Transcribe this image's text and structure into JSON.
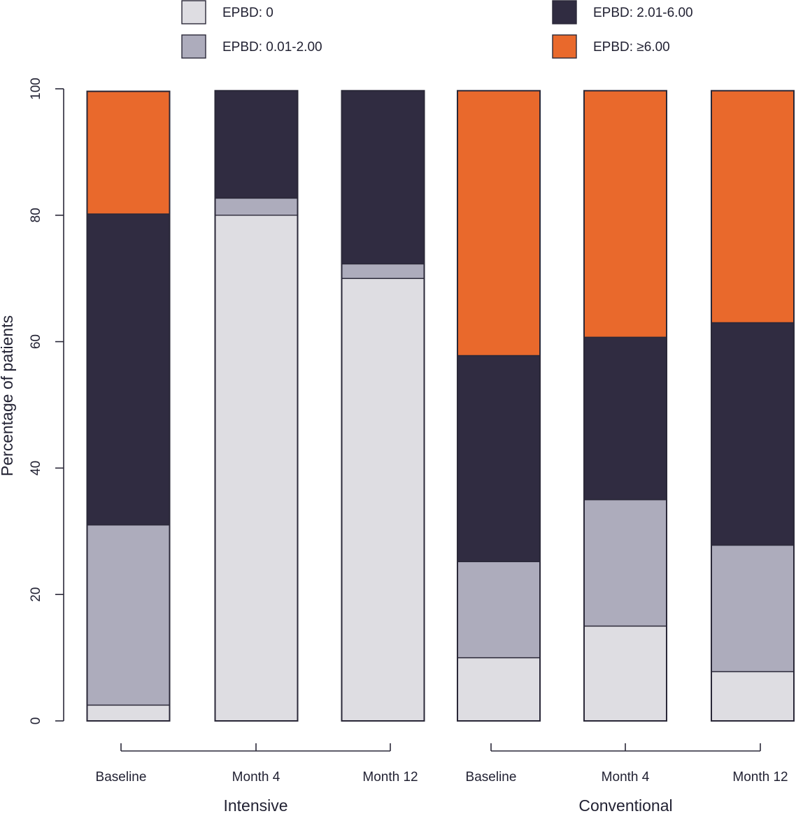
{
  "chart_data": {
    "type": "bar",
    "stacked": true,
    "categories": [
      "Baseline",
      "Month 4",
      "Month 12",
      "Baseline",
      "Month 4",
      "Month 12"
    ],
    "groups": [
      {
        "label": "Intensive",
        "categories": [
          0,
          1,
          2
        ]
      },
      {
        "label": "Conventional",
        "categories": [
          3,
          4,
          5
        ]
      }
    ],
    "series": [
      {
        "name": "EPBD: 0",
        "color": "#dedde2",
        "values": [
          2.5,
          80,
          70,
          10,
          15,
          7.8
        ]
      },
      {
        "name": "EPBD: 0.01-2.00",
        "color": "#adacbc",
        "values": [
          28.5,
          2.7,
          2.3,
          15.2,
          20,
          20
        ]
      },
      {
        "name": "EPBD: 2.01-6.00",
        "color": "#302c41",
        "values": [
          49.2,
          17.0,
          27.4,
          32.6,
          25.7,
          35.2
        ]
      },
      {
        "name": "EPBD: ≥6.00",
        "color": "#e9692c",
        "values": [
          19.4,
          0,
          0,
          41.9,
          39.0,
          36.7
        ]
      }
    ],
    "ylabel": "Percentage of patients",
    "xlabel": "",
    "ylim": [
      0,
      100
    ],
    "yticks": [
      0,
      20,
      40,
      60,
      80,
      100
    ],
    "grid": false,
    "legend_position": "top"
  }
}
